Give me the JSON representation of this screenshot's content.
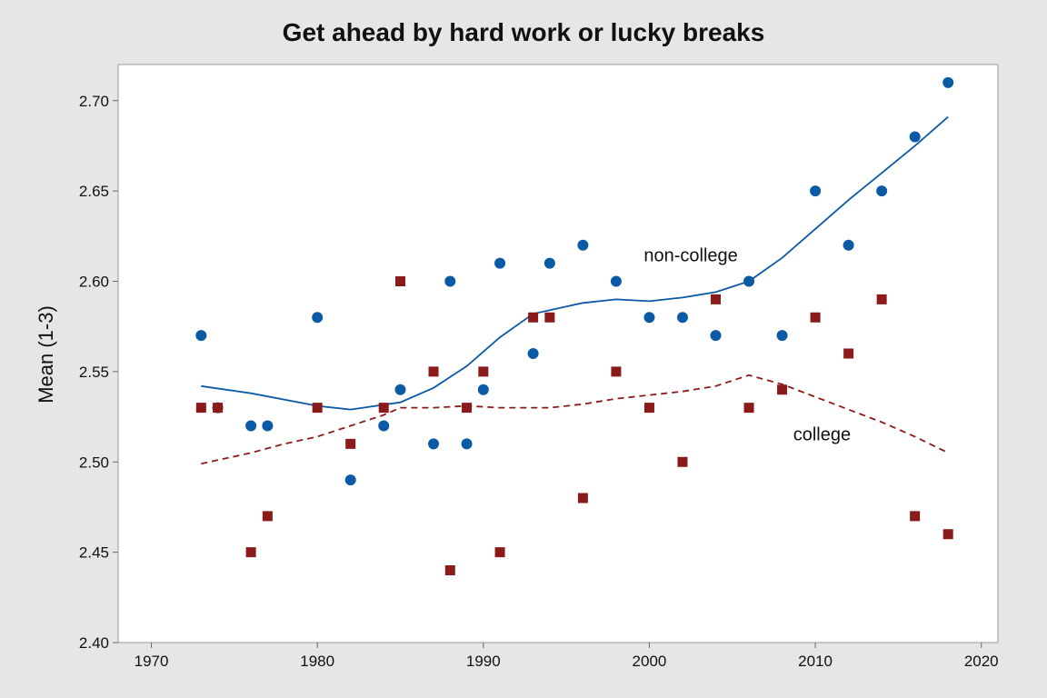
{
  "chart_data": {
    "type": "scatter",
    "title": "Get ahead by hard work or lucky breaks",
    "xlabel": "",
    "ylabel": "Mean (1-3)",
    "xlim": [
      1968,
      2021
    ],
    "ylim": [
      2.4,
      2.72
    ],
    "x_ticks": [
      1970,
      1980,
      1990,
      2000,
      2010,
      2020
    ],
    "y_ticks": [
      2.4,
      2.45,
      2.5,
      2.55,
      2.6,
      2.65,
      2.7
    ],
    "grid": false,
    "legend": "none",
    "annotations": [
      {
        "text": "non-college",
        "series": "non-college"
      },
      {
        "text": "college",
        "series": "college"
      }
    ],
    "series": [
      {
        "name": "non-college",
        "color": "#0b5aa6",
        "marker": "circle",
        "points": [
          [
            1973,
            2.57
          ],
          [
            1974,
            2.53
          ],
          [
            1976,
            2.52
          ],
          [
            1977,
            2.52
          ],
          [
            1980,
            2.58
          ],
          [
            1982,
            2.49
          ],
          [
            1984,
            2.52
          ],
          [
            1985,
            2.54
          ],
          [
            1987,
            2.51
          ],
          [
            1988,
            2.6
          ],
          [
            1989,
            2.51
          ],
          [
            1990,
            2.54
          ],
          [
            1991,
            2.61
          ],
          [
            1993,
            2.56
          ],
          [
            1994,
            2.61
          ],
          [
            1996,
            2.62
          ],
          [
            1998,
            2.6
          ],
          [
            2000,
            2.58
          ],
          [
            2002,
            2.58
          ],
          [
            2004,
            2.57
          ],
          [
            2006,
            2.6
          ],
          [
            2008,
            2.57
          ],
          [
            2010,
            2.65
          ],
          [
            2012,
            2.62
          ],
          [
            2014,
            2.65
          ],
          [
            2016,
            2.68
          ],
          [
            2018,
            2.71
          ]
        ],
        "smooth": {
          "style": "solid",
          "points": [
            [
              1973,
              2.542
            ],
            [
              1976,
              2.538
            ],
            [
              1980,
              2.531
            ],
            [
              1982,
              2.529
            ],
            [
              1985,
              2.533
            ],
            [
              1987,
              2.541
            ],
            [
              1989,
              2.553
            ],
            [
              1991,
              2.569
            ],
            [
              1993,
              2.582
            ],
            [
              1996,
              2.588
            ],
            [
              1998,
              2.59
            ],
            [
              2000,
              2.589
            ],
            [
              2002,
              2.591
            ],
            [
              2004,
              2.594
            ],
            [
              2006,
              2.6
            ],
            [
              2008,
              2.613
            ],
            [
              2010,
              2.629
            ],
            [
              2012,
              2.645
            ],
            [
              2014,
              2.66
            ],
            [
              2016,
              2.675
            ],
            [
              2018,
              2.691
            ]
          ]
        }
      },
      {
        "name": "college",
        "color": "#8b1a1a",
        "marker": "square",
        "points": [
          [
            1973,
            2.53
          ],
          [
            1974,
            2.53
          ],
          [
            1976,
            2.45
          ],
          [
            1977,
            2.47
          ],
          [
            1980,
            2.53
          ],
          [
            1982,
            2.51
          ],
          [
            1984,
            2.53
          ],
          [
            1985,
            2.6
          ],
          [
            1987,
            2.55
          ],
          [
            1988,
            2.44
          ],
          [
            1989,
            2.53
          ],
          [
            1990,
            2.55
          ],
          [
            1991,
            2.45
          ],
          [
            1993,
            2.58
          ],
          [
            1994,
            2.58
          ],
          [
            1996,
            2.48
          ],
          [
            1998,
            2.55
          ],
          [
            2000,
            2.53
          ],
          [
            2002,
            2.5
          ],
          [
            2004,
            2.59
          ],
          [
            2006,
            2.53
          ],
          [
            2008,
            2.54
          ],
          [
            2010,
            2.58
          ],
          [
            2012,
            2.56
          ],
          [
            2014,
            2.59
          ],
          [
            2016,
            2.47
          ],
          [
            2018,
            2.46
          ]
        ],
        "smooth": {
          "style": "dashed",
          "points": [
            [
              1973,
              2.499
            ],
            [
              1976,
              2.505
            ],
            [
              1978,
              2.51
            ],
            [
              1980,
              2.514
            ],
            [
              1982,
              2.52
            ],
            [
              1984,
              2.526
            ],
            [
              1985,
              2.53
            ],
            [
              1987,
              2.53
            ],
            [
              1989,
              2.531
            ],
            [
              1991,
              2.53
            ],
            [
              1994,
              2.53
            ],
            [
              1996,
              2.532
            ],
            [
              1998,
              2.535
            ],
            [
              2000,
              2.537
            ],
            [
              2002,
              2.539
            ],
            [
              2004,
              2.542
            ],
            [
              2006,
              2.548
            ],
            [
              2008,
              2.543
            ],
            [
              2010,
              2.536
            ],
            [
              2012,
              2.529
            ],
            [
              2014,
              2.522
            ],
            [
              2016,
              2.514
            ],
            [
              2018,
              2.505
            ]
          ]
        }
      }
    ]
  }
}
